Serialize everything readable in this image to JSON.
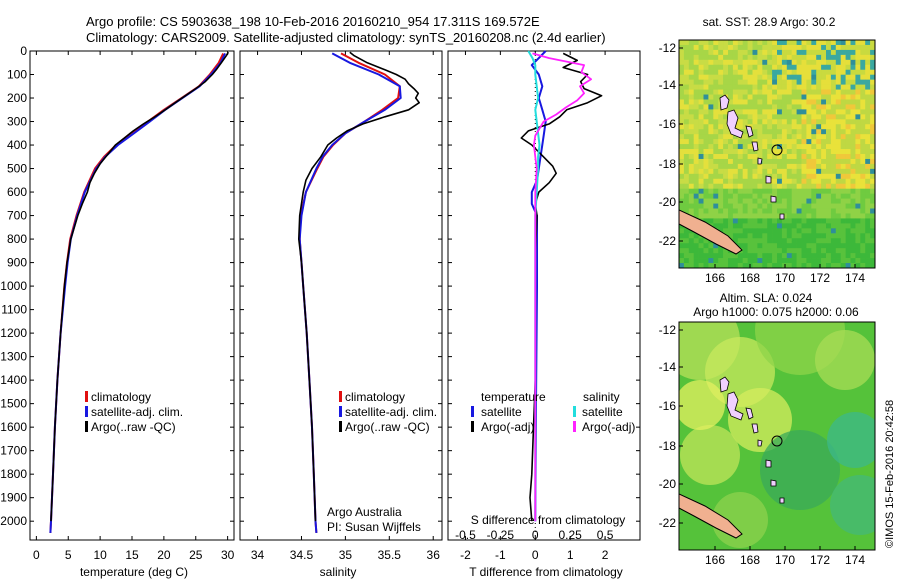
{
  "header": {
    "line1": "Argo profile: CS 5903638_198 10-Feb-2016 20160210_954 17.311S 169.572E",
    "line2": "Climatology: CARS2009. Satellite-adjusted climatology: synTS_20160208.nc (2.4d earlier)"
  },
  "colors": {
    "climatology": "#e01010",
    "satellite": "#1818e0",
    "argo": "#000000",
    "sal_satellite": "#22dddd",
    "sal_argo": "#ff22ff"
  },
  "chart_data": [
    {
      "type": "line",
      "id": "temperature",
      "xlabel": "temperature (deg C)",
      "xlim": [
        -1,
        31
      ],
      "xticks": [
        0,
        5,
        10,
        15,
        20,
        25,
        30
      ],
      "ylim": [
        0,
        2080
      ],
      "yticks": [
        0,
        100,
        200,
        300,
        400,
        500,
        600,
        700,
        800,
        900,
        1000,
        1100,
        1200,
        1300,
        1400,
        1500,
        1600,
        1700,
        1800,
        1900,
        2000
      ],
      "legend": [
        "climatology",
        "satellite-adj. clim.",
        "Argo(..raw -QC)"
      ],
      "series": [
        {
          "name": "climatology",
          "depth": [
            10,
            50,
            100,
            150,
            200,
            250,
            300,
            350,
            400,
            450,
            500,
            600,
            700,
            800,
            900,
            1000,
            1200,
            1400,
            1600,
            1800,
            2000,
            2050
          ],
          "values": [
            29.3,
            28.6,
            27.2,
            25.5,
            22.8,
            20.0,
            17.5,
            14.8,
            12.5,
            10.6,
            9.2,
            7.5,
            6.3,
            5.3,
            4.8,
            4.4,
            3.8,
            3.3,
            2.9,
            2.6,
            2.3,
            2.2
          ]
        },
        {
          "name": "satellite",
          "depth": [
            10,
            50,
            100,
            150,
            200,
            250,
            300,
            350,
            400,
            450,
            500,
            600,
            700,
            800,
            900,
            1000,
            1200,
            1400,
            1600,
            1800,
            2000,
            2050
          ],
          "values": [
            29.6,
            28.9,
            27.4,
            25.6,
            22.9,
            20.2,
            17.8,
            15.3,
            12.8,
            10.8,
            9.4,
            7.6,
            6.4,
            5.4,
            4.9,
            4.5,
            3.8,
            3.3,
            2.9,
            2.6,
            2.3,
            2.2
          ]
        },
        {
          "name": "argo",
          "depth": [
            5,
            20,
            50,
            80,
            100,
            130,
            160,
            190,
            220,
            250,
            280,
            310,
            340,
            370,
            400,
            440,
            480,
            520,
            560,
            600,
            650,
            700,
            800,
            900,
            1000,
            1200,
            1400,
            1600,
            1800,
            2000
          ],
          "values": [
            30.1,
            29.8,
            29.0,
            28.2,
            27.6,
            26.5,
            25.0,
            23.4,
            21.8,
            20.2,
            18.6,
            16.8,
            15.2,
            13.8,
            12.4,
            11.2,
            10.0,
            9.1,
            8.4,
            8.0,
            7.2,
            6.5,
            5.4,
            4.8,
            4.4,
            3.8,
            3.3,
            2.9,
            2.6,
            2.3
          ]
        }
      ]
    },
    {
      "type": "line",
      "id": "salinity",
      "xlabel": "salinity",
      "xlim": [
        33.8,
        36.1
      ],
      "xticks": [
        34,
        34.5,
        35,
        35.5,
        36
      ],
      "xtick_labels": [
        "34",
        "34.5",
        "35",
        "35.5",
        "36"
      ],
      "ylim": [
        0,
        2080
      ],
      "legend": [
        "climatology",
        "satellite-adj. clim.",
        "Argo(..raw -QC)"
      ],
      "annotation": [
        "Argo Australia",
        "PI: Susan Wijffels"
      ],
      "series": [
        {
          "name": "climatology",
          "depth": [
            10,
            50,
            100,
            150,
            200,
            250,
            300,
            350,
            400,
            450,
            500,
            600,
            700,
            800,
            900,
            1000,
            1200,
            1400,
            1600,
            1800,
            2000,
            2050
          ],
          "values": [
            34.95,
            35.15,
            35.45,
            35.62,
            35.6,
            35.42,
            35.22,
            35.0,
            34.86,
            34.75,
            34.68,
            34.55,
            34.49,
            34.48,
            34.5,
            34.52,
            34.56,
            34.59,
            34.62,
            34.64,
            34.66,
            34.67
          ]
        },
        {
          "name": "satellite",
          "depth": [
            10,
            50,
            100,
            150,
            200,
            250,
            300,
            350,
            400,
            450,
            500,
            600,
            700,
            800,
            900,
            1000,
            1200,
            1400,
            1600,
            1800,
            2000,
            2050
          ],
          "values": [
            34.85,
            35.05,
            35.38,
            35.62,
            35.63,
            35.45,
            35.22,
            35.0,
            34.85,
            34.74,
            34.67,
            34.55,
            34.5,
            34.48,
            34.5,
            34.52,
            34.56,
            34.59,
            34.62,
            34.64,
            34.66,
            34.67
          ]
        },
        {
          "name": "argo",
          "depth": [
            5,
            20,
            50,
            80,
            100,
            120,
            140,
            160,
            180,
            200,
            220,
            250,
            280,
            310,
            340,
            370,
            400,
            450,
            500,
            550,
            600,
            700,
            800,
            900,
            1000,
            1200,
            1400,
            1600,
            1800,
            2000
          ],
          "values": [
            35.05,
            35.1,
            35.25,
            35.45,
            35.58,
            35.68,
            35.72,
            35.78,
            35.83,
            35.8,
            35.84,
            35.72,
            35.45,
            35.2,
            35.02,
            34.9,
            34.8,
            34.72,
            34.62,
            34.55,
            34.52,
            34.48,
            34.47,
            34.5,
            34.52,
            34.56,
            34.59,
            34.62,
            34.64,
            34.66
          ]
        }
      ]
    },
    {
      "type": "line",
      "id": "difference",
      "xlabel": "T difference from climatology",
      "xlabel_top": "S difference from climatology",
      "xlim": [
        -2.5,
        3.0
      ],
      "xticks": [
        -2,
        -1,
        0,
        1,
        2
      ],
      "s_ticks": [
        -0.5,
        -0.25,
        0,
        0.25,
        0.5
      ],
      "s_tick_labels": [
        "-0.5",
        "-0.25",
        "0",
        "0.25",
        "0.5"
      ],
      "ylim": [
        0,
        2080
      ],
      "legend_temperature": {
        "title": "temperature",
        "items": [
          "satellite",
          "Argo(-adj)"
        ]
      },
      "legend_salinity": {
        "title": "salinity",
        "items": [
          "satellite",
          "Argo(-adj)"
        ]
      },
      "series": [
        {
          "name": "T satellite",
          "depth": [
            0,
            30,
            60,
            100,
            150,
            200,
            250,
            300,
            350,
            400,
            450,
            500,
            550,
            600,
            650,
            700,
            800,
            1000,
            1500,
            2000
          ],
          "values": [
            0.3,
            0.1,
            -0.1,
            0.1,
            0.2,
            0.1,
            0.2,
            0.3,
            0.25,
            0.2,
            0.15,
            0.1,
            0.05,
            -0.1,
            -0.1,
            0.05,
            0.05,
            0.05,
            0.02,
            0.0
          ]
        },
        {
          "name": "T argo",
          "depth": [
            10,
            40,
            70,
            100,
            130,
            160,
            190,
            220,
            250,
            280,
            310,
            340,
            370,
            400,
            430,
            460,
            490,
            520,
            560,
            600,
            650,
            700,
            800,
            900,
            1000,
            1200,
            1400,
            1600,
            1800,
            1900,
            2000
          ],
          "values": [
            0.8,
            1.2,
            0.8,
            1.5,
            1.3,
            1.4,
            1.9,
            1.5,
            0.9,
            0.7,
            0.4,
            -0.2,
            -0.4,
            -0.1,
            0.1,
            0.3,
            0.5,
            0.6,
            0.4,
            0.1,
            0.0,
            0.05,
            0.02,
            0.0,
            0.0,
            0.0,
            0.0,
            -0.05,
            -0.1,
            -0.15,
            -0.1
          ]
        },
        {
          "name": "S satellite",
          "depth": [
            0,
            30,
            60,
            100,
            150,
            200,
            250,
            300,
            350,
            400,
            450,
            500,
            600,
            700,
            800,
            1000,
            1500,
            2000
          ],
          "values": [
            -0.05,
            -0.02,
            0.0,
            0.0,
            0.01,
            0.02,
            0.0,
            0.01,
            0.02,
            0.03,
            0.02,
            0.02,
            0.01,
            0.0,
            0.0,
            0.0,
            0.0,
            0.0
          ]
        },
        {
          "name": "S argo",
          "depth": [
            10,
            30,
            60,
            90,
            120,
            150,
            180,
            210,
            240,
            270,
            300,
            330,
            360,
            400,
            450,
            500,
            600,
            700,
            800,
            1000,
            1500,
            2000
          ],
          "values": [
            -0.02,
            0.1,
            0.35,
            0.33,
            0.4,
            0.32,
            0.35,
            0.3,
            0.22,
            0.15,
            0.06,
            0.03,
            0.0,
            -0.01,
            0.0,
            0.01,
            0.0,
            0.0,
            0.0,
            0.0,
            0.0,
            0.0
          ]
        }
      ]
    }
  ],
  "maps": {
    "sst": {
      "title": "sat. SST: 28.9  Argo: 30.2",
      "lat_ticks": [
        "-12",
        "-14",
        "-16",
        "-18",
        "-20",
        "-22"
      ],
      "lon_ticks": [
        "166",
        "168",
        "170",
        "172",
        "174"
      ]
    },
    "sla": {
      "title1": "Altim. SLA: 0.024",
      "title2": "Argo h1000: 0.075 h2000: 0.06",
      "lat_ticks": [
        "-12",
        "-14",
        "-16",
        "-18",
        "-20",
        "-22"
      ],
      "lon_ticks": [
        "166",
        "168",
        "170",
        "172",
        "174"
      ]
    },
    "float_position": {
      "lon": 169.572,
      "lat": -17.311
    }
  },
  "footer": {
    "credit": "©IMOS 15-Feb-2016 20:42:58"
  }
}
